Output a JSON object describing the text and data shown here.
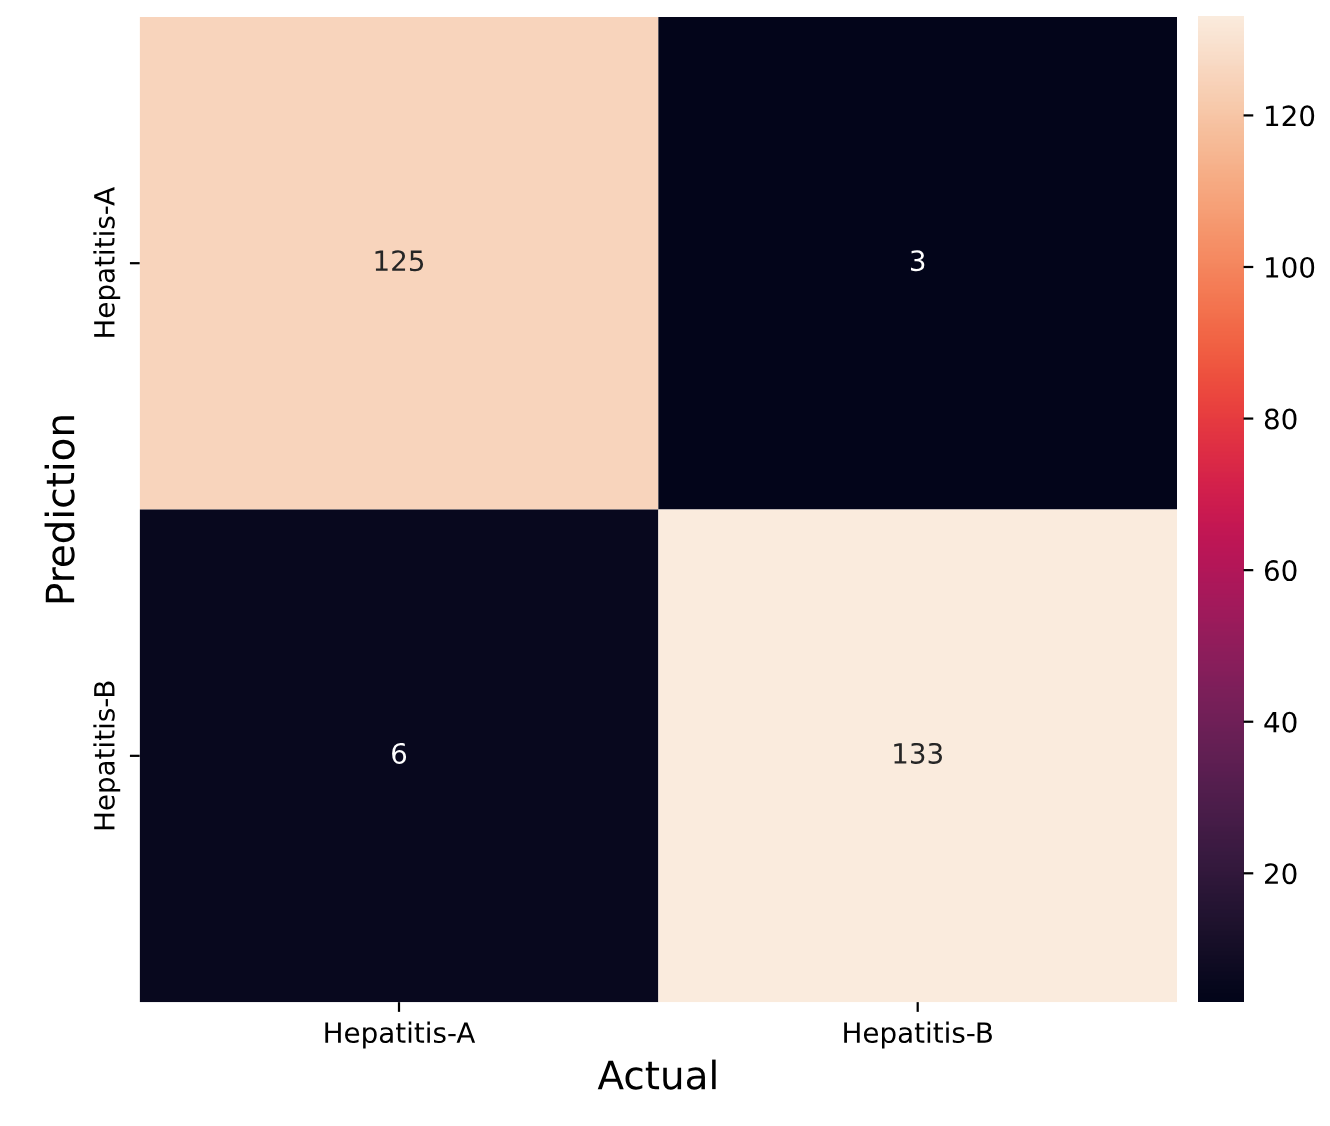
{
  "chart_data": {
    "type": "heatmap",
    "xlabel": "Actual",
    "ylabel": "Prediction",
    "categories": [
      "Hepatitis-A",
      "Hepatitis-B"
    ],
    "y_categories": [
      "Hepatitis-A",
      "Hepatitis-B"
    ],
    "cells": [
      [
        125,
        3
      ],
      [
        6,
        133
      ]
    ],
    "data_labels": true,
    "clim": [
      3,
      133
    ],
    "cticks": [
      20,
      40,
      60,
      80,
      100,
      120
    ]
  }
}
